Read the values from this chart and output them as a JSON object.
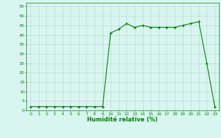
{
  "x": [
    0,
    1,
    2,
    3,
    4,
    5,
    6,
    7,
    8,
    9,
    10,
    11,
    12,
    13,
    14,
    15,
    16,
    17,
    18,
    19,
    20,
    21,
    22,
    23
  ],
  "y": [
    2,
    2,
    2,
    2,
    2,
    2,
    2,
    2,
    2,
    2,
    41,
    43,
    46,
    44,
    45,
    44,
    44,
    44,
    44,
    45,
    46,
    47,
    25,
    2
  ],
  "line_color": "#008000",
  "marker": "+",
  "marker_size": 3,
  "marker_linewidth": 0.8,
  "line_width": 0.8,
  "bg_color": "#d8f5f0",
  "grid_color": "#b0d8cc",
  "xlim": [
    -0.5,
    23.5
  ],
  "ylim": [
    0,
    57
  ],
  "yticks": [
    0,
    5,
    10,
    15,
    20,
    25,
    30,
    35,
    40,
    45,
    50,
    55
  ],
  "xticks": [
    0,
    1,
    2,
    3,
    4,
    5,
    6,
    7,
    8,
    9,
    10,
    11,
    12,
    13,
    14,
    15,
    16,
    17,
    18,
    19,
    20,
    21,
    22,
    23
  ],
  "tick_color": "#008000",
  "tick_fontsize": 4.5,
  "xlabel": "Humidité relative (%)",
  "xlabel_fontsize": 6,
  "xlabel_bold": true,
  "xlabel_color": "#008000",
  "spine_color": "#008000"
}
